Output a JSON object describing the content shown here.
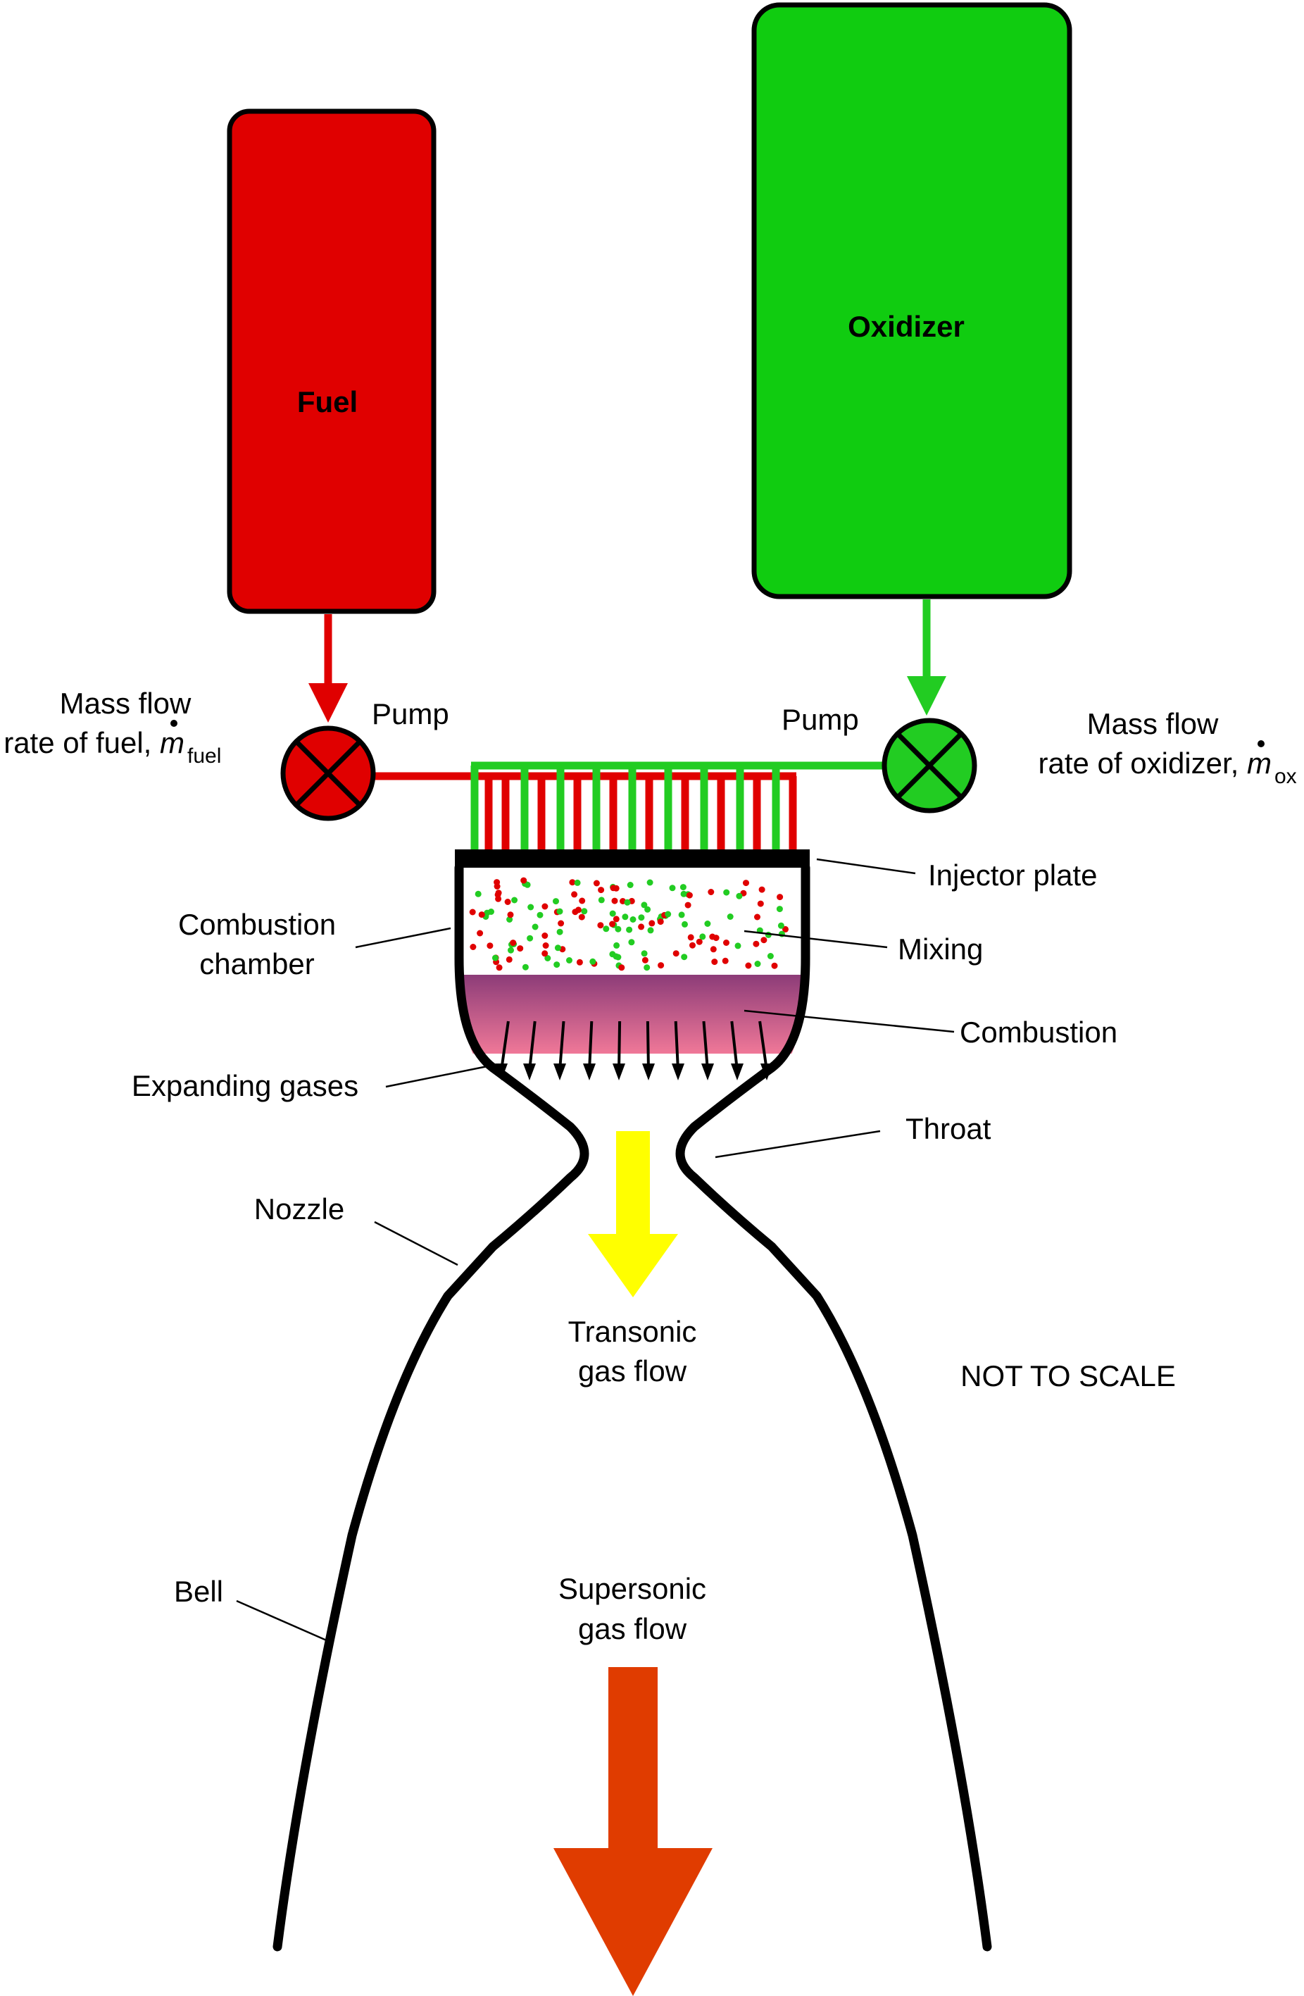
{
  "tanks": {
    "fuel": {
      "label": "Fuel",
      "color": "#e00000"
    },
    "oxidizer": {
      "label": "Oxidizer",
      "color": "#10cc10"
    }
  },
  "pumps": {
    "fuel": {
      "label": "Pump"
    },
    "oxidizer": {
      "label": "Pump"
    }
  },
  "mass_flow": {
    "fuel": {
      "line1": "Mass flow",
      "line2": "rate of fuel, ",
      "symbol": "m",
      "subscript": "fuel"
    },
    "oxidizer": {
      "line1": "Mass flow",
      "line2": "rate of oxidizer, ",
      "symbol": "m",
      "subscript": "ox"
    }
  },
  "labels": {
    "injector_plate": "Injector plate",
    "combustion_chamber_1": "Combustion",
    "combustion_chamber_2": "chamber",
    "mixing": "Mixing",
    "combustion": "Combustion",
    "expanding_gases": "Expanding gases",
    "throat": "Throat",
    "nozzle": "Nozzle",
    "transonic_1": "Transonic",
    "transonic_2": "gas flow",
    "not_to_scale": "NOT TO SCALE",
    "bell": "Bell",
    "supersonic_1": "Supersonic",
    "supersonic_2": "gas flow"
  },
  "colors": {
    "fuel_line": "#e00000",
    "oxidizer_line": "#22cc22",
    "transonic_arrow": "#ffff00",
    "supersonic_arrow": "#e03c00",
    "combustion_top": "#8c3c78",
    "combustion_bottom": "#f07898"
  }
}
